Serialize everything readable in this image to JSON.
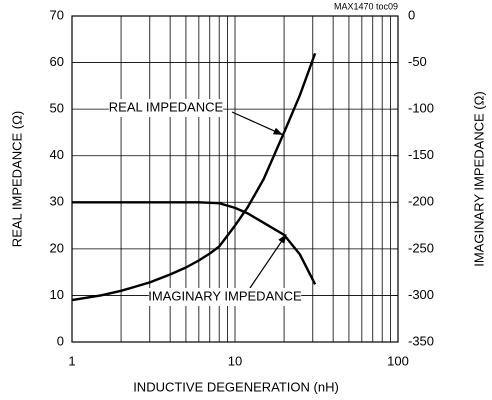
{
  "chart_data": {
    "type": "line",
    "note": "MAX1470 toc09",
    "xlabel": "INDUCTIVE DEGENERATION (nH)",
    "ylabel": "REAL IMPEDANCE (Ω)",
    "y2label": "IMAGINARY IMPEDANCE (Ω)",
    "xscale": "log",
    "grid": true,
    "color": "#000000",
    "xlim": [
      1,
      100
    ],
    "xticks": [
      1,
      10,
      100
    ],
    "ylim": [
      0,
      70
    ],
    "yticks": [
      0,
      10,
      20,
      30,
      40,
      50,
      60,
      70
    ],
    "y2lim": [
      -350,
      0
    ],
    "y2ticks": [
      0,
      -50,
      -100,
      -150,
      -200,
      -250,
      -300,
      -350
    ],
    "series": [
      {
        "name": "REAL IMPEDANCE",
        "color": "#000000",
        "x": [
          1,
          1.5,
          2,
          3,
          4,
          5,
          6,
          7,
          8,
          10,
          12,
          15,
          20,
          25,
          31
        ],
        "values": [
          9,
          10,
          11,
          12.8,
          14.5,
          16,
          17.5,
          19,
          20.5,
          25,
          29,
          35,
          45,
          53,
          62
        ]
      },
      {
        "name": "IMAGINARY IMPEDANCE",
        "color": "#000000",
        "axis": "y2",
        "x": [
          1,
          2,
          4,
          6,
          8,
          10,
          12,
          15,
          20,
          25,
          31
        ],
        "values": [
          -200,
          -200,
          -200,
          -200,
          -201,
          -206,
          -212,
          -222,
          -235,
          -256,
          -288
        ]
      }
    ]
  }
}
